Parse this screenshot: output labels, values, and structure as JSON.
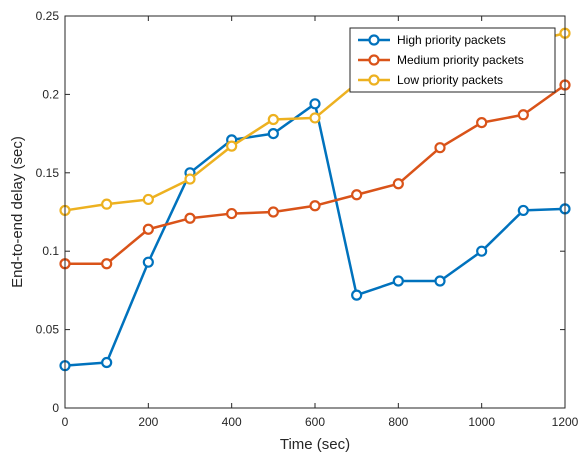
{
  "chart_data": {
    "type": "line",
    "xlabel": "Time (sec)",
    "ylabel": "End-to-end delay (sec)",
    "xlim": [
      0,
      1200
    ],
    "ylim": [
      0,
      0.25
    ],
    "xticks": [
      0,
      200,
      400,
      600,
      800,
      1000,
      1200
    ],
    "xtick_labels": [
      "0",
      "200",
      "400",
      "600",
      "800",
      "1000",
      "1200"
    ],
    "yticks": [
      0,
      0.05,
      0.1,
      0.15,
      0.2,
      0.25
    ],
    "ytick_labels": [
      "0",
      "0.05",
      "0.1",
      "0.15",
      "0.2",
      "0.25"
    ],
    "grid": false,
    "legend_position": "top-right",
    "x": [
      0,
      100,
      200,
      300,
      400,
      500,
      600,
      700,
      800,
      900,
      1000,
      1100,
      1200
    ],
    "series": [
      {
        "name": "High priority packets",
        "color": "#0072BD",
        "values": [
          0.027,
          0.029,
          0.093,
          0.15,
          0.171,
          0.175,
          0.194,
          0.072,
          0.081,
          0.081,
          0.1,
          0.126,
          0.127
        ]
      },
      {
        "name": "Medium priority packets",
        "color": "#D95319",
        "values": [
          0.092,
          0.092,
          0.114,
          0.121,
          0.124,
          0.125,
          0.129,
          0.136,
          0.143,
          0.166,
          0.182,
          0.187,
          0.206
        ]
      },
      {
        "name": "Low priority packets",
        "color": "#EDB120",
        "values": [
          0.126,
          0.13,
          0.133,
          0.146,
          0.167,
          0.184,
          0.185,
          0.207,
          null,
          null,
          null,
          null,
          0.239
        ]
      }
    ]
  }
}
